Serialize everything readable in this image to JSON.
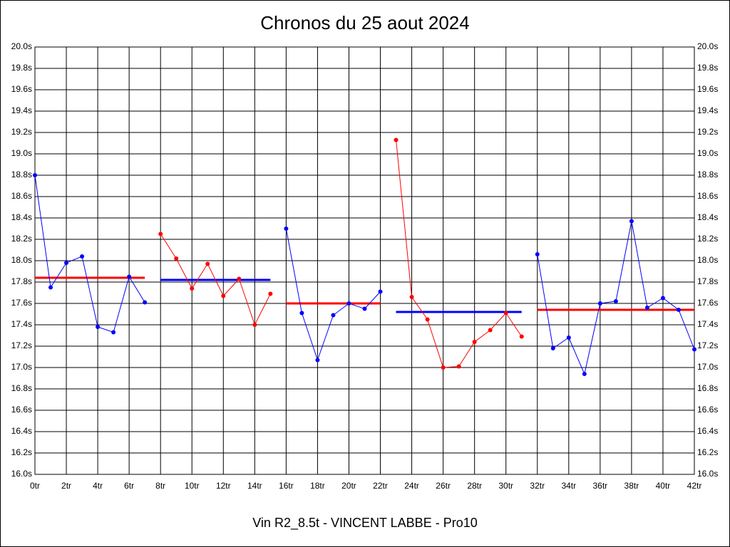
{
  "chart_data": {
    "type": "line",
    "title": "Chronos du 25 aout 2024",
    "xlabel": "Vin R2_8.5t - VINCENT LABBE - Pro10",
    "xlim": [
      0,
      42
    ],
    "ylim": [
      16.0,
      20.0
    ],
    "grid": true,
    "xticks": [
      {
        "value": 0,
        "label": "0tr"
      },
      {
        "value": 2,
        "label": "2tr"
      },
      {
        "value": 4,
        "label": "4tr"
      },
      {
        "value": 6,
        "label": "6tr"
      },
      {
        "value": 8,
        "label": "8tr"
      },
      {
        "value": 10,
        "label": "10tr"
      },
      {
        "value": 12,
        "label": "12tr"
      },
      {
        "value": 14,
        "label": "14tr"
      },
      {
        "value": 16,
        "label": "16tr"
      },
      {
        "value": 18,
        "label": "18tr"
      },
      {
        "value": 20,
        "label": "20tr"
      },
      {
        "value": 22,
        "label": "22tr"
      },
      {
        "value": 24,
        "label": "24tr"
      },
      {
        "value": 26,
        "label": "26tr"
      },
      {
        "value": 28,
        "label": "28tr"
      },
      {
        "value": 30,
        "label": "30tr"
      },
      {
        "value": 32,
        "label": "32tr"
      },
      {
        "value": 34,
        "label": "34tr"
      },
      {
        "value": 36,
        "label": "36tr"
      },
      {
        "value": 38,
        "label": "38tr"
      },
      {
        "value": 40,
        "label": "40tr"
      },
      {
        "value": 42,
        "label": "42tr"
      }
    ],
    "yticks": [
      {
        "value": 16.0,
        "label": "16.0s"
      },
      {
        "value": 16.2,
        "label": "16.2s"
      },
      {
        "value": 16.4,
        "label": "16.4s"
      },
      {
        "value": 16.6,
        "label": "16.6s"
      },
      {
        "value": 16.8,
        "label": "16.8s"
      },
      {
        "value": 17.0,
        "label": "17.0s"
      },
      {
        "value": 17.2,
        "label": "17.2s"
      },
      {
        "value": 17.4,
        "label": "17.4s"
      },
      {
        "value": 17.6,
        "label": "17.6s"
      },
      {
        "value": 17.8,
        "label": "17.8s"
      },
      {
        "value": 18.0,
        "label": "18.0s"
      },
      {
        "value": 18.2,
        "label": "18.2s"
      },
      {
        "value": 18.4,
        "label": "18.4s"
      },
      {
        "value": 18.6,
        "label": "18.6s"
      },
      {
        "value": 18.8,
        "label": "18.8s"
      },
      {
        "value": 19.0,
        "label": "19.0s"
      },
      {
        "value": 19.2,
        "label": "19.2s"
      },
      {
        "value": 19.4,
        "label": "19.4s"
      },
      {
        "value": 19.6,
        "label": "19.6s"
      },
      {
        "value": 19.8,
        "label": "19.8s"
      },
      {
        "value": 20.0,
        "label": "20.0s"
      }
    ],
    "series": [
      {
        "color": "#0000ff",
        "x": [
          0,
          1,
          2,
          3,
          4,
          5,
          6,
          7
        ],
        "values": [
          18.8,
          17.75,
          17.98,
          18.04,
          17.38,
          17.33,
          17.85,
          17.61
        ]
      },
      {
        "color": "#ff0000",
        "x": [
          8,
          9,
          10,
          11,
          12,
          13,
          14,
          15
        ],
        "values": [
          18.25,
          18.02,
          17.74,
          17.97,
          17.67,
          17.83,
          17.4,
          17.69
        ]
      },
      {
        "color": "#0000ff",
        "x": [
          16,
          17,
          18,
          19,
          20,
          21,
          22
        ],
        "values": [
          18.3,
          17.51,
          17.07,
          17.49,
          17.6,
          17.55,
          17.71
        ]
      },
      {
        "color": "#ff0000",
        "x": [
          23,
          24,
          25,
          26,
          27,
          28,
          29,
          30,
          31
        ],
        "values": [
          19.13,
          17.66,
          17.45,
          17.0,
          17.01,
          17.24,
          17.35,
          17.51,
          17.29
        ]
      },
      {
        "color": "#0000ff",
        "x": [
          32,
          33,
          34,
          35,
          36,
          37,
          38,
          39,
          40,
          41,
          42
        ],
        "values": [
          18.06,
          17.18,
          17.28,
          16.94,
          17.6,
          17.62,
          18.37,
          17.56,
          17.65,
          17.54,
          17.17
        ]
      }
    ],
    "averages": [
      {
        "color": "#ff0000",
        "from": 0,
        "to": 7,
        "value": 17.84
      },
      {
        "color": "#0000ff",
        "from": 8,
        "to": 15,
        "value": 17.82
      },
      {
        "color": "#ff0000",
        "from": 16,
        "to": 22,
        "value": 17.6
      },
      {
        "color": "#0000ff",
        "from": 23,
        "to": 31,
        "value": 17.52
      },
      {
        "color": "#ff0000",
        "from": 32,
        "to": 42,
        "value": 17.54
      }
    ]
  }
}
